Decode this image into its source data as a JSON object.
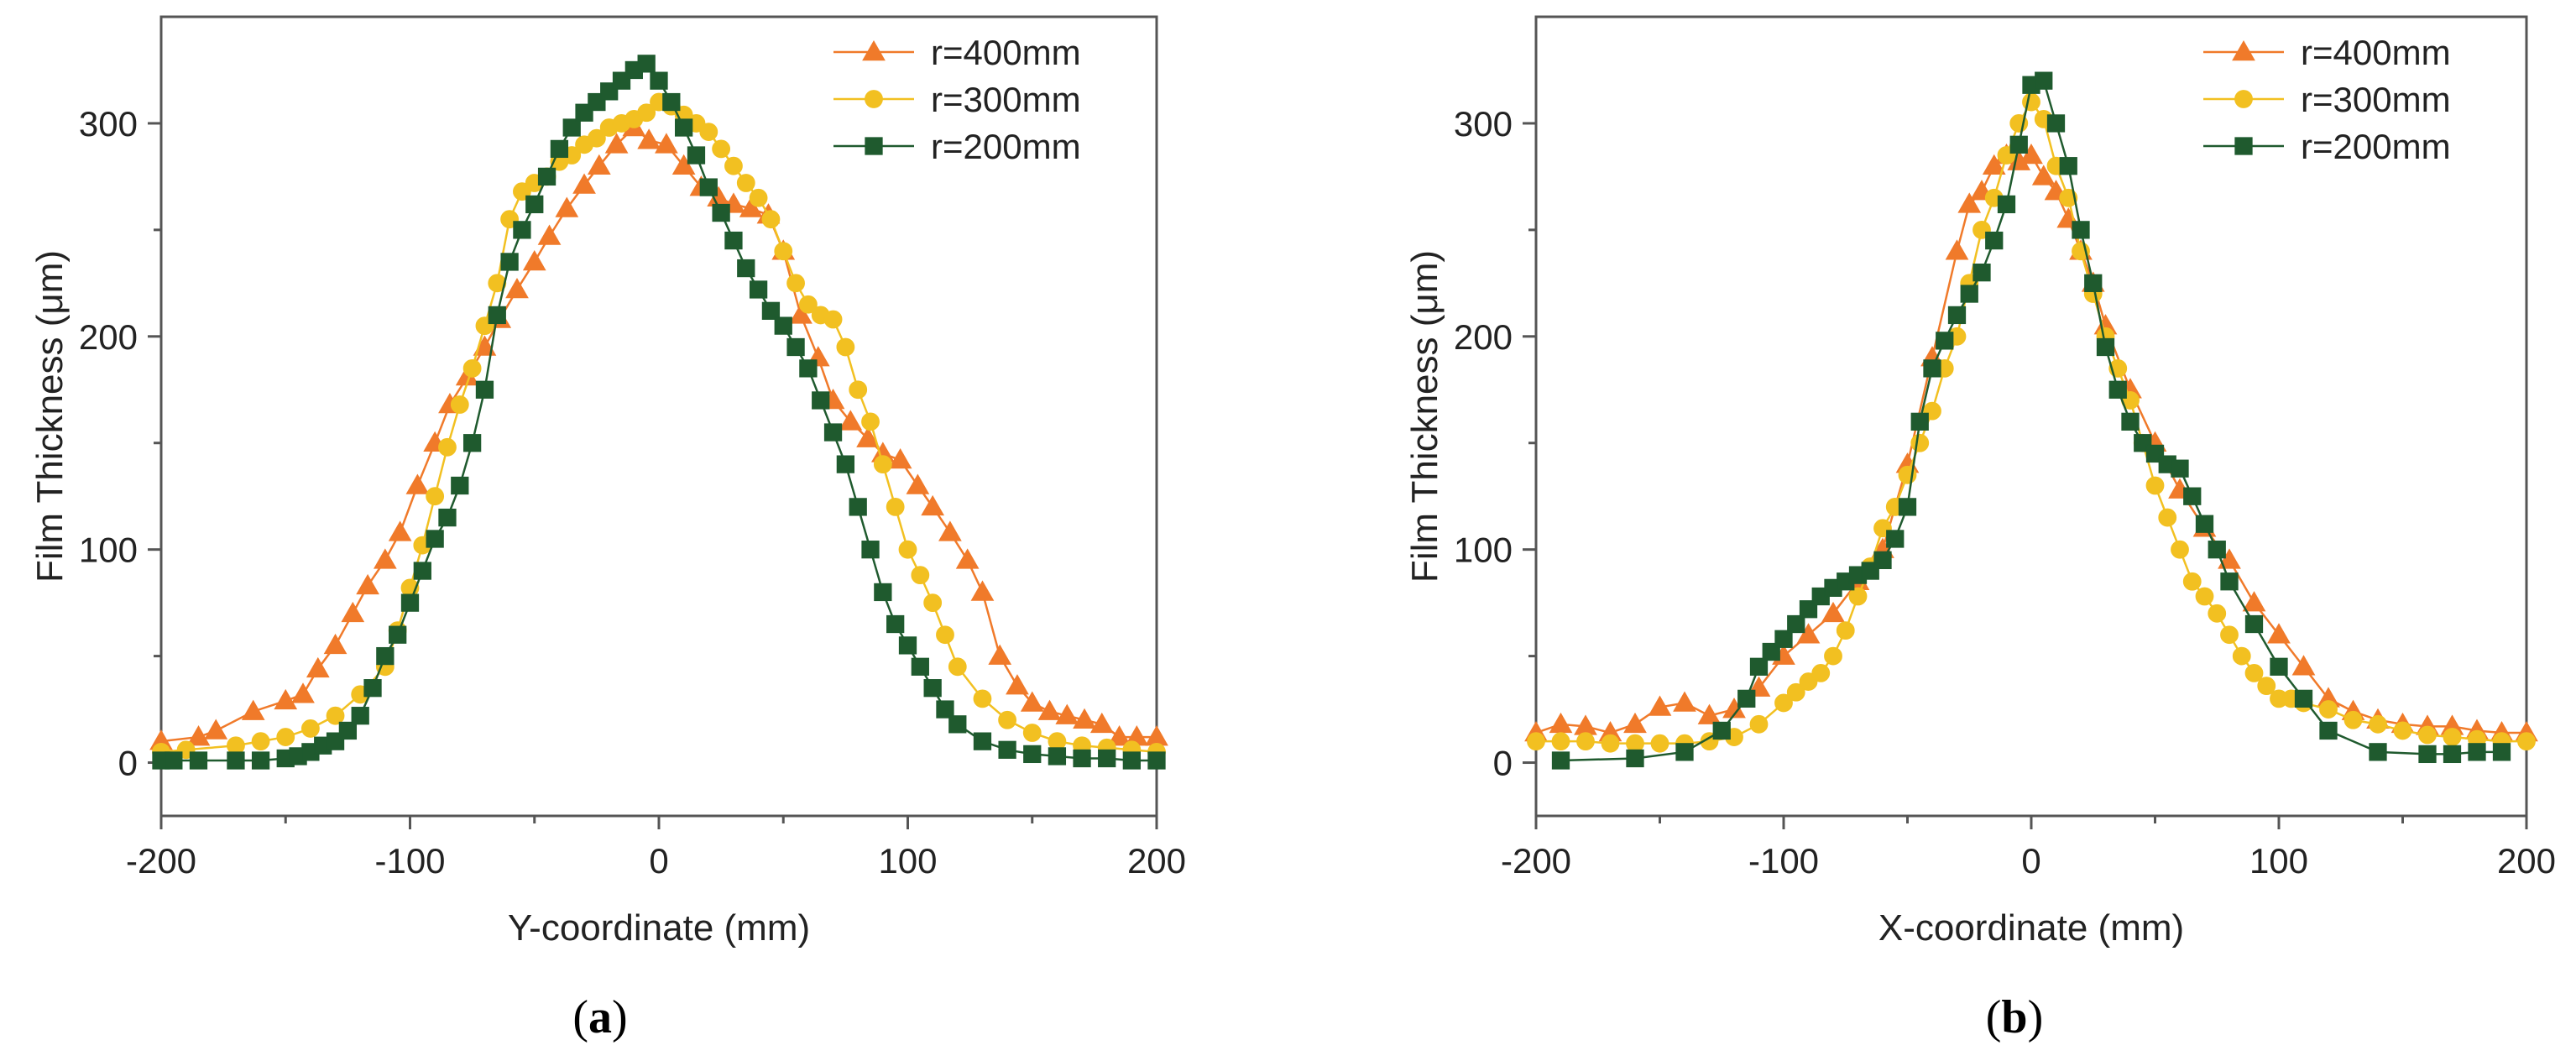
{
  "colors": {
    "r400": "#F07A2A",
    "r300": "#F2C021",
    "r200": "#1F5A2E",
    "axis": "#555555"
  },
  "chart_data": [
    {
      "type": "line",
      "panel_label": "a",
      "xlabel": "Y-coordinate (mm)",
      "ylabel": "Film Thickness (μm)",
      "xlim": [
        -200,
        200
      ],
      "ylim": [
        -25,
        350
      ],
      "xticks": [
        -200,
        -100,
        0,
        100,
        200
      ],
      "yticks": [
        0,
        100,
        200,
        300
      ],
      "legend_position": "top-right",
      "series": [
        {
          "name": "r=400mm",
          "marker": "triangle",
          "color_key": "r400",
          "x": [
            -200,
            -185,
            -178,
            -163,
            -150,
            -143,
            -137,
            -130,
            -123,
            -117,
            -110,
            -104,
            -97,
            -90,
            -84,
            -77,
            -70,
            -64,
            -57,
            -50,
            -44,
            -37,
            -30,
            -24,
            -17,
            -10,
            -4,
            3,
            10,
            17,
            24,
            30,
            37,
            44,
            50,
            57,
            64,
            70,
            77,
            84,
            90,
            97,
            104,
            110,
            117,
            124,
            130,
            137,
            144,
            150,
            157,
            164,
            171,
            178,
            185,
            192,
            200
          ],
          "y": [
            10,
            12,
            15,
            24,
            29,
            32,
            44,
            55,
            70,
            83,
            95,
            108,
            130,
            150,
            168,
            181,
            195,
            208,
            222,
            235,
            247,
            260,
            271,
            280,
            290,
            298,
            292,
            290,
            280,
            270,
            265,
            262,
            260,
            257,
            240,
            210,
            190,
            170,
            160,
            152,
            145,
            142,
            130,
            120,
            108,
            95,
            80,
            50,
            36,
            28,
            24,
            22,
            20,
            18,
            12,
            12,
            12
          ]
        },
        {
          "name": "r=300mm",
          "marker": "circle",
          "color_key": "r300",
          "x": [
            -200,
            -190,
            -170,
            -160,
            -150,
            -140,
            -130,
            -120,
            -110,
            -105,
            -100,
            -95,
            -90,
            -85,
            -80,
            -75,
            -70,
            -65,
            -60,
            -55,
            -50,
            -45,
            -40,
            -35,
            -30,
            -25,
            -20,
            -15,
            -10,
            -5,
            0,
            5,
            10,
            15,
            20,
            25,
            30,
            35,
            40,
            45,
            50,
            55,
            60,
            65,
            70,
            75,
            80,
            85,
            90,
            95,
            100,
            105,
            110,
            115,
            120,
            130,
            140,
            150,
            160,
            170,
            180,
            190,
            200
          ],
          "y": [
            5,
            6,
            8,
            10,
            12,
            16,
            22,
            32,
            45,
            62,
            82,
            102,
            125,
            148,
            168,
            185,
            205,
            225,
            255,
            268,
            272,
            275,
            282,
            285,
            290,
            293,
            298,
            300,
            302,
            305,
            310,
            308,
            304,
            300,
            296,
            288,
            280,
            272,
            265,
            255,
            240,
            225,
            215,
            210,
            208,
            195,
            175,
            160,
            140,
            120,
            100,
            88,
            75,
            60,
            45,
            30,
            20,
            14,
            10,
            8,
            7,
            6,
            5
          ]
        },
        {
          "name": "r=200mm",
          "marker": "square",
          "color_key": "r200",
          "x": [
            -200,
            -195,
            -185,
            -170,
            -160,
            -150,
            -145,
            -140,
            -135,
            -130,
            -125,
            -120,
            -115,
            -110,
            -105,
            -100,
            -95,
            -90,
            -85,
            -80,
            -75,
            -70,
            -65,
            -60,
            -55,
            -50,
            -45,
            -40,
            -35,
            -30,
            -25,
            -20,
            -15,
            -10,
            -5,
            0,
            5,
            10,
            15,
            20,
            25,
            30,
            35,
            40,
            45,
            50,
            55,
            60,
            65,
            70,
            75,
            80,
            85,
            90,
            95,
            100,
            105,
            110,
            115,
            120,
            130,
            140,
            150,
            160,
            170,
            180,
            190,
            200
          ],
          "y": [
            1,
            1,
            1,
            1,
            1,
            2,
            3,
            5,
            8,
            10,
            15,
            22,
            35,
            50,
            60,
            75,
            90,
            105,
            115,
            130,
            150,
            175,
            210,
            235,
            250,
            262,
            275,
            288,
            298,
            305,
            310,
            315,
            320,
            325,
            328,
            320,
            310,
            298,
            285,
            270,
            258,
            245,
            232,
            222,
            212,
            205,
            195,
            185,
            170,
            155,
            140,
            120,
            100,
            80,
            65,
            55,
            45,
            35,
            25,
            18,
            10,
            6,
            4,
            3,
            2,
            2,
            1,
            1
          ]
        }
      ]
    },
    {
      "type": "line",
      "panel_label": "b",
      "xlabel": "X-coordinate (mm)",
      "ylabel": "Film Thickness (μm)",
      "xlim": [
        -200,
        200
      ],
      "ylim": [
        -25,
        350
      ],
      "xticks": [
        -200,
        -100,
        0,
        100,
        200
      ],
      "yticks": [
        0,
        100,
        200,
        300
      ],
      "legend_position": "top-right",
      "series": [
        {
          "name": "r=400mm",
          "marker": "triangle",
          "color_key": "r400",
          "x": [
            -200,
            -190,
            -180,
            -170,
            -160,
            -150,
            -140,
            -130,
            -120,
            -110,
            -100,
            -90,
            -80,
            -70,
            -60,
            -50,
            -40,
            -30,
            -25,
            -20,
            -15,
            -10,
            -5,
            0,
            5,
            10,
            15,
            20,
            25,
            30,
            40,
            50,
            60,
            70,
            80,
            90,
            100,
            110,
            120,
            130,
            140,
            150,
            160,
            170,
            180,
            190,
            200
          ],
          "y": [
            14,
            18,
            17,
            14,
            18,
            26,
            28,
            22,
            25,
            35,
            50,
            60,
            70,
            85,
            100,
            140,
            190,
            240,
            262,
            268,
            280,
            285,
            282,
            285,
            275,
            268,
            255,
            240,
            225,
            205,
            175,
            150,
            128,
            110,
            95,
            75,
            60,
            45,
            30,
            24,
            20,
            18,
            17,
            17,
            15,
            14,
            14
          ]
        },
        {
          "name": "r=300mm",
          "marker": "circle",
          "color_key": "r300",
          "x": [
            -200,
            -190,
            -180,
            -170,
            -160,
            -150,
            -140,
            -130,
            -120,
            -110,
            -100,
            -95,
            -90,
            -85,
            -80,
            -75,
            -70,
            -65,
            -60,
            -55,
            -50,
            -45,
            -40,
            -35,
            -30,
            -25,
            -20,
            -15,
            -10,
            -5,
            0,
            5,
            10,
            15,
            20,
            25,
            30,
            35,
            40,
            45,
            50,
            55,
            60,
            65,
            70,
            75,
            80,
            85,
            90,
            95,
            100,
            105,
            110,
            120,
            130,
            140,
            150,
            160,
            170,
            180,
            190,
            200
          ],
          "y": [
            10,
            10,
            10,
            9,
            9,
            9,
            9,
            10,
            12,
            18,
            28,
            33,
            38,
            42,
            50,
            62,
            78,
            92,
            110,
            120,
            135,
            150,
            165,
            185,
            200,
            225,
            250,
            265,
            285,
            300,
            310,
            302,
            280,
            265,
            240,
            220,
            200,
            185,
            170,
            150,
            130,
            115,
            100,
            85,
            78,
            70,
            60,
            50,
            42,
            36,
            30,
            30,
            28,
            25,
            20,
            18,
            15,
            13,
            12,
            11,
            10,
            10
          ]
        },
        {
          "name": "r=200mm",
          "marker": "square",
          "color_key": "r200",
          "x": [
            -190,
            -160,
            -140,
            -125,
            -115,
            -110,
            -105,
            -100,
            -95,
            -90,
            -85,
            -80,
            -75,
            -70,
            -65,
            -60,
            -55,
            -50,
            -45,
            -40,
            -35,
            -30,
            -25,
            -20,
            -15,
            -10,
            -5,
            0,
            5,
            10,
            15,
            20,
            25,
            30,
            35,
            40,
            45,
            50,
            55,
            60,
            65,
            70,
            75,
            80,
            90,
            100,
            110,
            120,
            140,
            160,
            170,
            180,
            190
          ],
          "y": [
            1,
            2,
            5,
            15,
            30,
            45,
            52,
            58,
            65,
            72,
            78,
            82,
            85,
            88,
            90,
            95,
            105,
            120,
            160,
            185,
            198,
            210,
            220,
            230,
            245,
            262,
            290,
            318,
            320,
            300,
            280,
            250,
            225,
            195,
            175,
            160,
            150,
            145,
            140,
            138,
            125,
            112,
            100,
            85,
            65,
            45,
            30,
            15,
            5,
            4,
            4,
            5,
            5
          ]
        }
      ]
    }
  ]
}
